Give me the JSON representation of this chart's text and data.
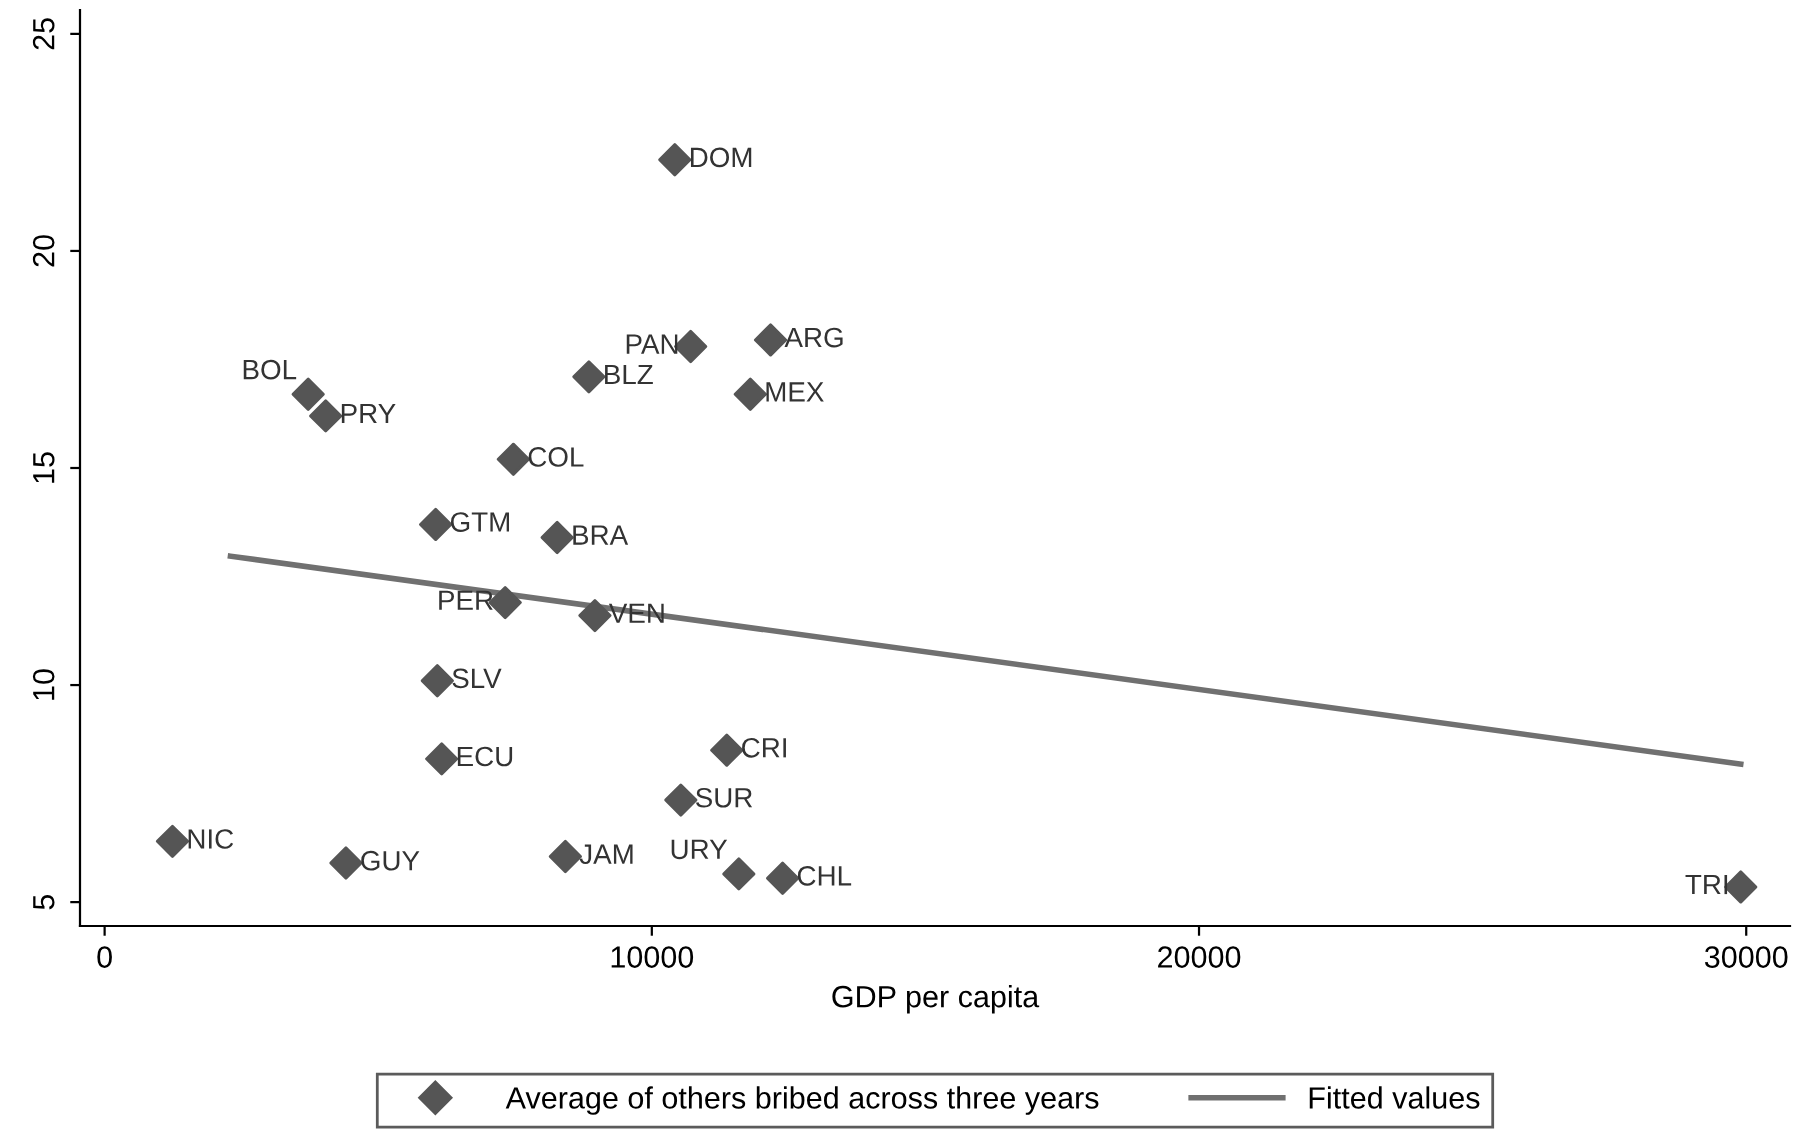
{
  "chart_data": {
    "type": "scatter",
    "xlabel": "GDP per capita",
    "xlim": [
      -450,
      30800
    ],
    "xticks": [
      0,
      10000,
      20000,
      30000
    ],
    "ylim": [
      4.45,
      25.55
    ],
    "yticks": [
      5,
      10,
      15,
      20,
      25
    ],
    "grid": false,
    "legend": "bottom",
    "series": [
      {
        "name": "Average of others bribed across three years",
        "marker": "diamond",
        "color": "#555555",
        "x": [
          10420,
          12170,
          10710,
          8850,
          11800,
          3720,
          4040,
          7470,
          6050,
          8270,
          7320,
          8960,
          6080,
          6160,
          11370,
          10530,
          1240,
          4410,
          8420,
          11590,
          12390,
          29900
        ],
        "values": [
          22.1,
          17.95,
          17.8,
          17.1,
          16.7,
          16.7,
          16.2,
          15.2,
          13.7,
          13.4,
          11.9,
          11.6,
          10.1,
          8.3,
          8.5,
          7.35,
          6.4,
          5.9,
          6.05,
          5.65,
          5.55,
          5.35
        ],
        "value_labels": [
          "DOM",
          "ARG",
          "PAN",
          "BLZ",
          "MEX",
          "BOL",
          "PRY",
          "COL",
          "GTM",
          "BRA",
          "PER",
          "VEN",
          "SLV",
          "ECU",
          "CRI",
          "SUR",
          "NIC",
          "GUY",
          "JAM",
          "URY",
          "CHL",
          "TRI"
        ]
      },
      {
        "name": "Fitted values",
        "type": "line",
        "color": "#707070",
        "x": [
          2300,
          29900
        ],
        "values": [
          12.97,
          8.18
        ],
        "marker": "none"
      }
    ]
  }
}
